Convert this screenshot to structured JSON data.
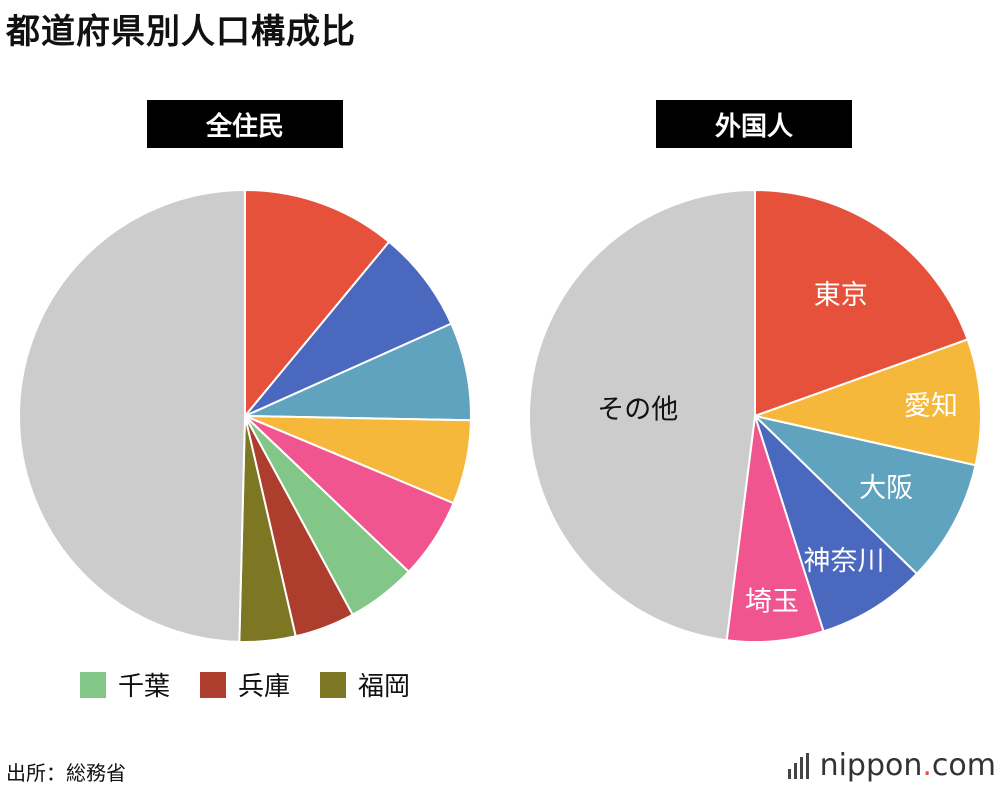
{
  "page": {
    "title": "都道府県別人口構成比",
    "source": "出所：総務省"
  },
  "logo": {
    "name": "nippon",
    "dot": ".",
    "suffix": "com"
  },
  "colors": {
    "tokyo": "#e5513a",
    "kanagawa": "#4a68bd",
    "osaka": "#5fa3be",
    "aichi": "#f6b83b",
    "saitama": "#f0558f",
    "chiba": "#82c688",
    "hyogo": "#ad3d2d",
    "fukuoka": "#7d7622",
    "other": "#cccccc"
  },
  "legend": [
    {
      "label": "千葉",
      "color": "#82c688"
    },
    {
      "label": "兵庫",
      "color": "#ad3d2d"
    },
    {
      "label": "福岡",
      "color": "#7d7622"
    }
  ],
  "chart_data": [
    {
      "type": "pie",
      "title": "全住民",
      "start": "12-o'clock",
      "direction": "clockwise",
      "slices": [
        {
          "name": "",
          "value": 11.0,
          "color": "#e5513a"
        },
        {
          "name": "",
          "value": 7.3,
          "color": "#4a68bd"
        },
        {
          "name": "",
          "value": 7.0,
          "color": "#5fa3be"
        },
        {
          "name": "",
          "value": 6.0,
          "color": "#f6b83b"
        },
        {
          "name": "",
          "value": 5.8,
          "color": "#f0558f"
        },
        {
          "name": "千葉",
          "value": 5.0,
          "color": "#82c688"
        },
        {
          "name": "兵庫",
          "value": 4.3,
          "color": "#ad3d2d"
        },
        {
          "name": "福岡",
          "value": 4.0,
          "color": "#7d7622"
        },
        {
          "name": "",
          "value": 49.6,
          "color": "#cccccc"
        }
      ]
    },
    {
      "type": "pie",
      "title": "外国人",
      "start": "12-o'clock",
      "direction": "clockwise",
      "slices": [
        {
          "name": "東京",
          "value": 19.5,
          "color": "#e5513a"
        },
        {
          "name": "愛知",
          "value": 9.0,
          "color": "#f6b83b"
        },
        {
          "name": "大阪",
          "value": 8.8,
          "color": "#5fa3be"
        },
        {
          "name": "神奈川",
          "value": 7.8,
          "color": "#4a68bd"
        },
        {
          "name": "埼玉",
          "value": 6.9,
          "color": "#f0558f"
        },
        {
          "name": "その他",
          "value": 48.0,
          "color": "#cccccc"
        }
      ]
    }
  ]
}
